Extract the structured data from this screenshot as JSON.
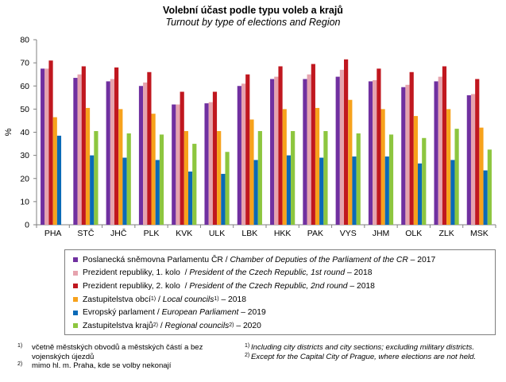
{
  "title": "Volební účast podle typu voleb a krajů",
  "subtitle": "Turnout  by type of elections and Region",
  "chart_data": {
    "type": "bar",
    "ylabel": "%",
    "ylim": [
      0,
      80
    ],
    "yticks": [
      0,
      10,
      20,
      30,
      40,
      50,
      60,
      70,
      80
    ],
    "grid": false,
    "categories": [
      "PHA",
      "STČ",
      "JHČ",
      "PLK",
      "KVK",
      "ULK",
      "LBK",
      "HKK",
      "PAK",
      "VYS",
      "JHM",
      "OLK",
      "ZLK",
      "MSK"
    ],
    "series": [
      {
        "name": "Poslanecká sněmovna Parlamentu ČR / Chamber of Deputies of the Parliament of the CR – 2017",
        "color": "#7030a0",
        "values": [
          67.5,
          63.5,
          62,
          60,
          52,
          52.5,
          60,
          63,
          63,
          64,
          62,
          59.5,
          62,
          56
        ]
      },
      {
        "name": "Prezident republiky, 1. kolo / President of the Czech Republic, 1st round – 2018",
        "color": "#e6a3ae",
        "values": [
          67.5,
          65,
          63,
          61.5,
          52,
          53,
          61,
          64,
          65,
          67,
          62.5,
          60.5,
          64,
          56.5
        ]
      },
      {
        "name": "Prezident republiky, 2. kolo / President of the Czech Republic, 2nd round – 2018",
        "color": "#c0171f",
        "values": [
          71,
          68.5,
          68,
          66,
          57.5,
          57.5,
          65,
          68.5,
          69.5,
          71.5,
          67.5,
          66,
          68.5,
          63
        ]
      },
      {
        "name": "Zastupitelstva obcí 1) / Local councils 1) – 2018",
        "color": "#f7a21c",
        "values": [
          46.5,
          50.5,
          50,
          48,
          40.5,
          40.5,
          45.5,
          50,
          50.5,
          54,
          50,
          47,
          50,
          42
        ]
      },
      {
        "name": "Evropský parlament / European Parliament – 2019",
        "color": "#0a6ab7",
        "values": [
          38.5,
          30,
          29,
          28,
          23,
          22,
          28,
          30,
          29,
          29.5,
          29.5,
          26.5,
          28,
          23.5
        ]
      },
      {
        "name": "Zastupitelstva krajů 2) / Regional councils 2) – 2020",
        "color": "#8dc63f",
        "values": [
          null,
          40.5,
          39.5,
          39,
          35,
          31.5,
          40.5,
          40.5,
          40.5,
          39.5,
          39,
          37.5,
          41.5,
          32.5
        ]
      }
    ]
  },
  "legend": [
    {
      "cz": "Poslanecká sněmovna Parlamentu  ČR",
      "sep": " / ",
      "en": "Chamber of Deputies of the Parliament of the CR",
      "year": " – 2017",
      "cz_sup": "",
      "en_sup": ""
    },
    {
      "cz": "Prezident republiky, 1. kolo",
      "sep": "  / ",
      "en": "President of the Czech Republic, 1st round",
      "year": " – 2018",
      "cz_sup": "",
      "en_sup": ""
    },
    {
      "cz": "Prezident republiky, 2. kolo",
      "sep": "  / ",
      "en": "President of the Czech Republic, 2nd round",
      "year": " – 2018",
      "cz_sup": "",
      "en_sup": ""
    },
    {
      "cz": "Zastupitelstva obcí",
      "sep": " / ",
      "en": "Local councils",
      "year": " – 2018",
      "cz_sup": "1)",
      "en_sup": "1)"
    },
    {
      "cz": "Evropský parlament",
      "sep": " / ",
      "en": "European Parliament",
      "year": " – 2019",
      "cz_sup": "",
      "en_sup": ""
    },
    {
      "cz": "Zastupitelstva krajů",
      "sep": " / ",
      "en": "Regional councils",
      "year": " – 2020",
      "cz_sup": "2)",
      "en_sup": "2)"
    }
  ],
  "footnotes": {
    "left": [
      {
        "mark": "1)",
        "text": "včetně městských obvodů a městských částí a bez vojenských újezdů"
      },
      {
        "mark": "2)",
        "text": "mimo  hl.  m.  Praha,  kde se volby nekonají"
      }
    ],
    "right": [
      {
        "mark": "1)",
        "text": "Including city districts and city sections; excluding military districts."
      },
      {
        "mark": "2)",
        "text": "Except for the Capital City of Prague, where elections are not held."
      }
    ]
  }
}
